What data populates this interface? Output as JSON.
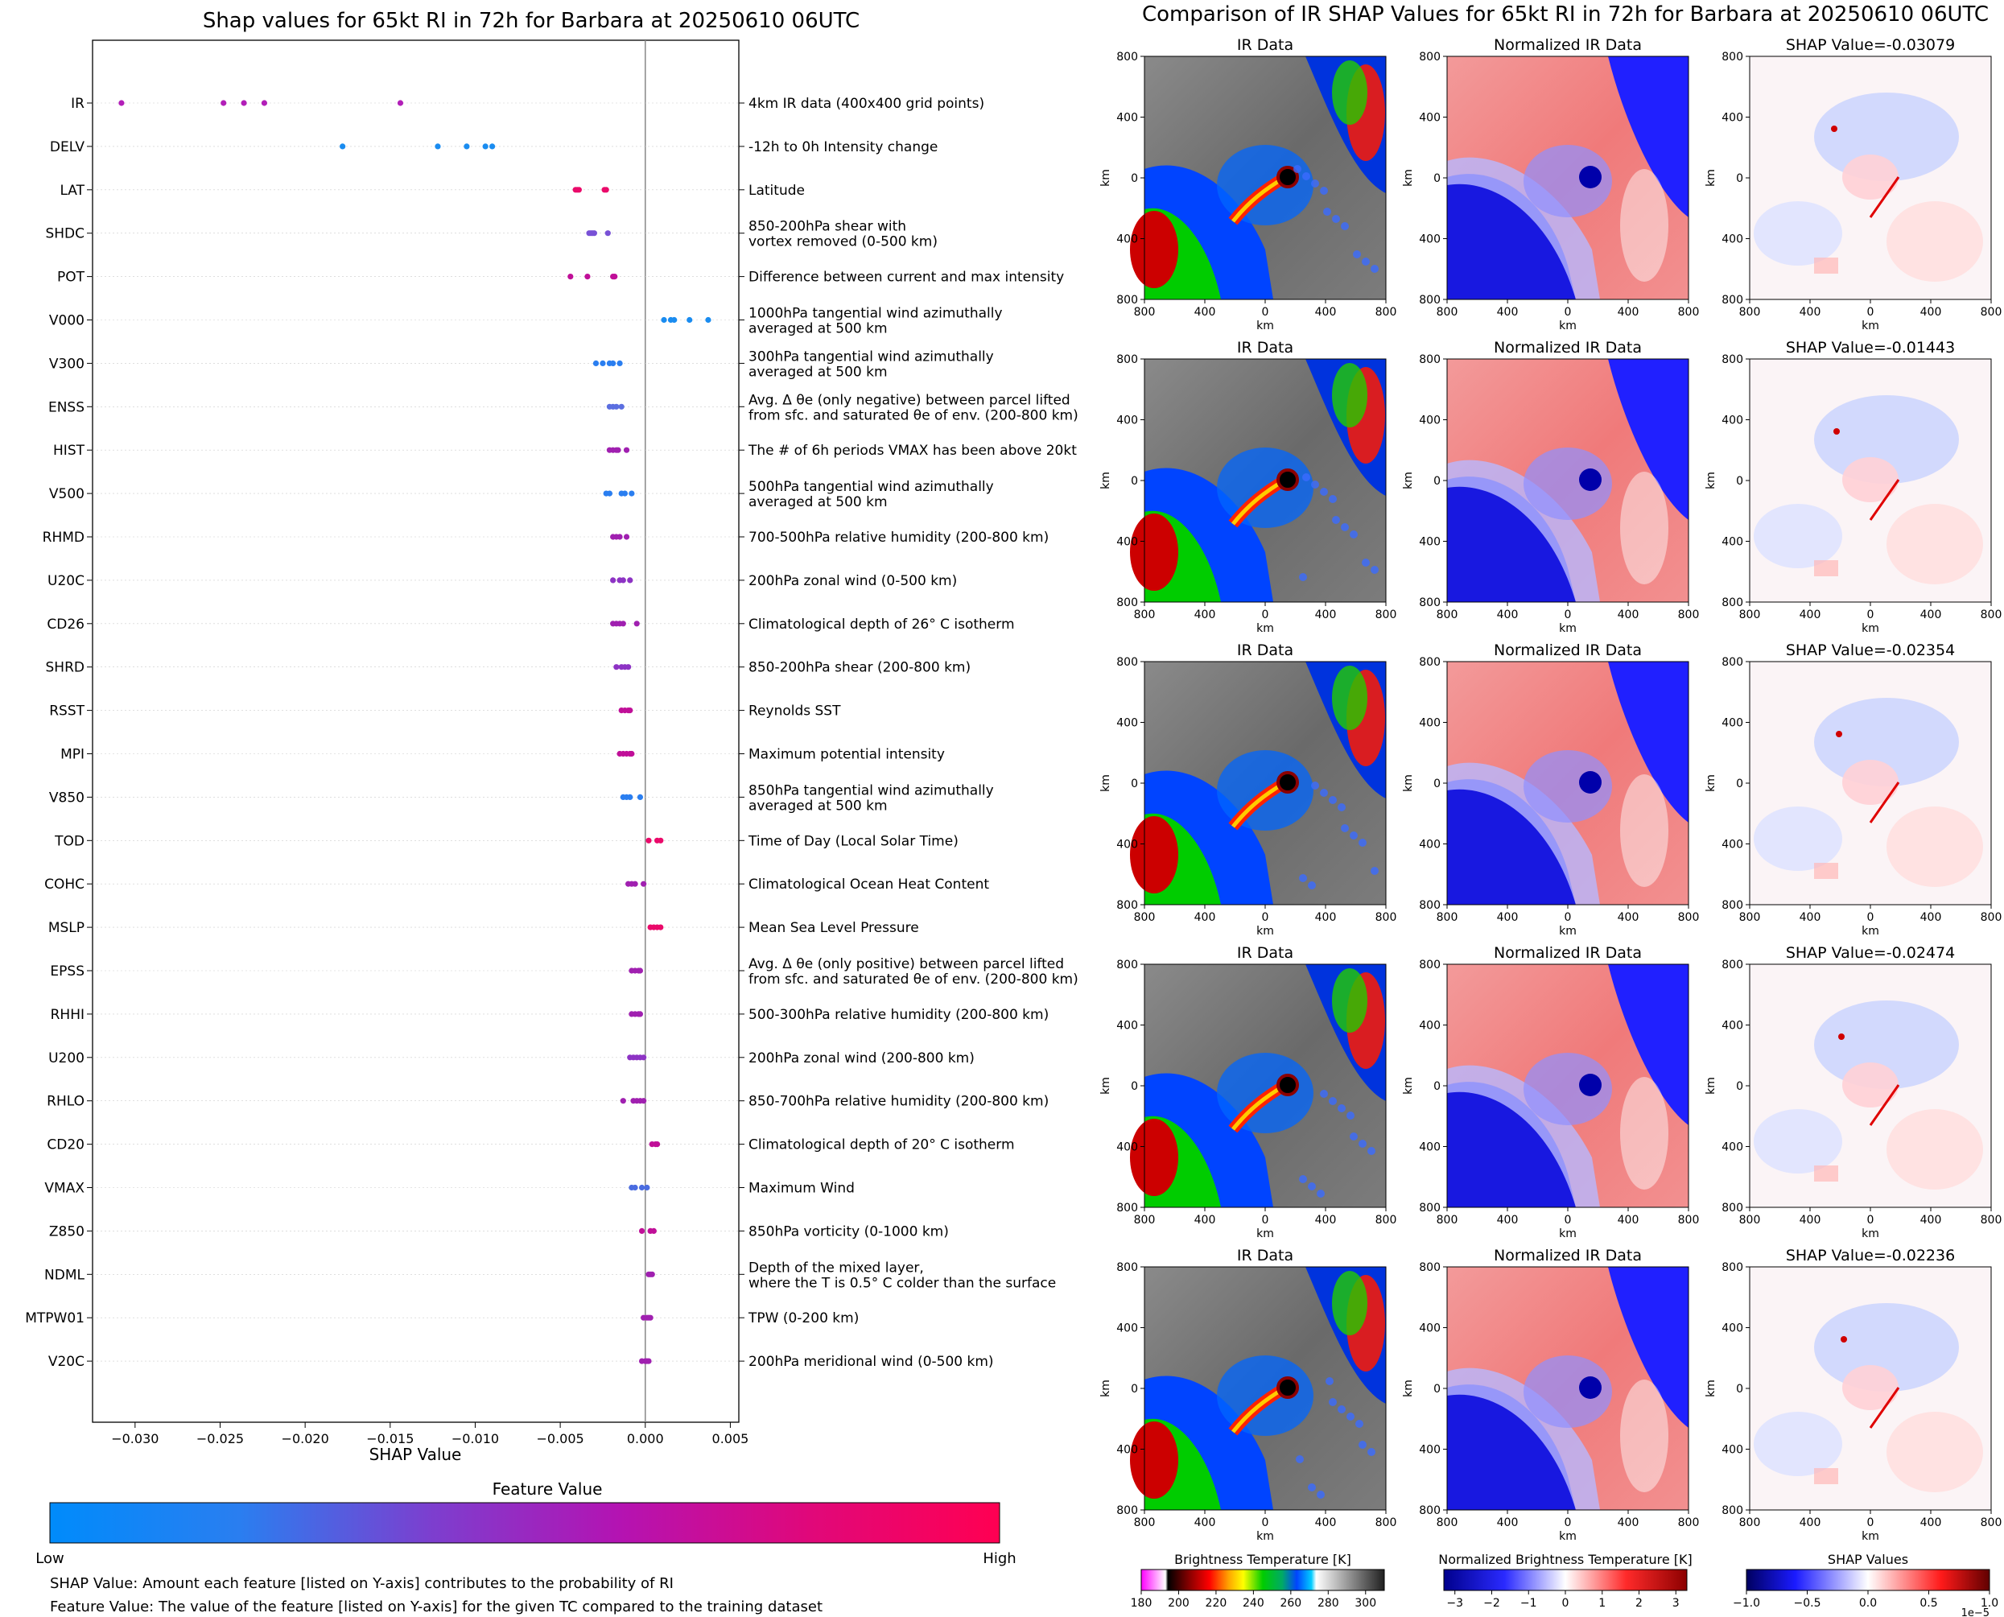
{
  "left_panel": {
    "title": "Shap values for 65kt RI in 72h for Barbara at 20250610 06UTC",
    "xlabel": "SHAP Value",
    "colorbar_title": "Feature Value",
    "colorbar_low": "Low",
    "colorbar_high": "High",
    "footnote_1": "SHAP Value: Amount each feature [listed on Y-axis] contributes to the probability of RI",
    "footnote_2": "Feature Value: The value of the feature [listed on Y-axis] for the given TC compared to the training dataset"
  },
  "right_panel": {
    "title": "Comparison of IR SHAP Values for 65kt RI in 72h for Barbara at 20250610 06UTC",
    "col_titles": [
      "IR Data",
      "Normalized IR Data"
    ],
    "shap_titles": [
      "SHAP Value=-0.03079",
      "SHAP Value=-0.01443",
      "SHAP Value=-0.02354",
      "SHAP Value=-0.02474",
      "SHAP Value=-0.02236"
    ],
    "axis_label": "km",
    "tick_labels": [
      "800",
      "400",
      "0",
      "400",
      "800"
    ],
    "colorbars": [
      {
        "title": "Brightness Temperature [K]",
        "ticks": [
          "180",
          "200",
          "220",
          "240",
          "260",
          "280",
          "300"
        ]
      },
      {
        "title": "Normalized Brightness Temperature [K]",
        "ticks": [
          "−3",
          "−2",
          "−1",
          "0",
          "1",
          "2",
          "3"
        ]
      },
      {
        "title": "SHAP Values",
        "ticks": [
          "−1.0",
          "−0.5",
          "0.0",
          "0.5",
          "1.0"
        ],
        "offset": "1e−5"
      }
    ]
  },
  "chart_data": [
    {
      "type": "scatter",
      "title": "Shap values for 65kt RI in 72h for Barbara at 20250610 06UTC",
      "xlabel": "SHAP Value",
      "xlim": [
        -0.0325,
        0.0055
      ],
      "xticks": [
        -0.03,
        -0.025,
        -0.02,
        -0.015,
        -0.01,
        -0.005,
        0.0,
        0.005
      ],
      "xtick_labels": [
        "−0.030",
        "−0.025",
        "−0.020",
        "−0.015",
        "−0.010",
        "−0.005",
        "0.000",
        "0.005"
      ],
      "grid": false,
      "features": [
        {
          "name": "IR",
          "desc": "4km IR data (400x400 grid points)",
          "values": [
            -0.0308,
            -0.0248,
            -0.0236,
            -0.0224,
            -0.0144
          ],
          "color": "#b21fb8"
        },
        {
          "name": "DELV",
          "desc": "-12h to 0h Intensity change",
          "values": [
            -0.0178,
            -0.0122,
            -0.0105,
            -0.0094,
            -0.009
          ],
          "color": "#1a8cf0"
        },
        {
          "name": "LAT",
          "desc": "Latitude",
          "values": [
            -0.0041,
            -0.004,
            -0.0039,
            -0.0024,
            -0.0023
          ],
          "color": "#ea0a6a"
        },
        {
          "name": "SHDC",
          "desc": "850-200hPa shear with\nvortex removed (0-500 km)",
          "values": [
            -0.0033,
            -0.0032,
            -0.0031,
            -0.003,
            -0.0022
          ],
          "color": "#7851d6"
        },
        {
          "name": "POT",
          "desc": "Difference between current and max intensity",
          "values": [
            -0.0044,
            -0.0034,
            -0.0019,
            -0.0018
          ],
          "color": "#c00f98"
        },
        {
          "name": "V000",
          "desc": "1000hPa tangential wind azimuthally\naveraged at 500 km",
          "values": [
            0.0011,
            0.0015,
            0.0017,
            0.0026,
            0.0037
          ],
          "color": "#1a8cf0"
        },
        {
          "name": "V300",
          "desc": "300hPa tangential wind azimuthally\naveraged at 500 km",
          "values": [
            -0.0029,
            -0.0025,
            -0.0021,
            -0.0019,
            -0.0015
          ],
          "color": "#2a7ef0"
        },
        {
          "name": "ENSS",
          "desc": "Avg. Δ θe (only negative) between parcel lifted\nfrom sfc. and saturated θe of env. (200-800 km)",
          "values": [
            -0.0021,
            -0.0019,
            -0.0017,
            -0.0014
          ],
          "color": "#5b6ee0"
        },
        {
          "name": "HIST",
          "desc": "The # of 6h periods VMAX has been above 20kt",
          "values": [
            -0.0021,
            -0.0019,
            -0.0017,
            -0.0016,
            -0.0011
          ],
          "color": "#a020b0"
        },
        {
          "name": "V500",
          "desc": "500hPa tangential wind azimuthally\naveraged at 500 km",
          "values": [
            -0.0023,
            -0.0021,
            -0.0014,
            -0.0012,
            -0.0008
          ],
          "color": "#2a7ef0"
        },
        {
          "name": "RHMD",
          "desc": "700-500hPa relative humidity (200-800 km)",
          "values": [
            -0.0019,
            -0.0017,
            -0.0015,
            -0.0011
          ],
          "color": "#a020b0"
        },
        {
          "name": "U20C",
          "desc": "200hPa zonal wind (0-500 km)",
          "values": [
            -0.0019,
            -0.0015,
            -0.0013,
            -0.0009
          ],
          "color": "#8d33c4"
        },
        {
          "name": "CD26",
          "desc": "Climatological depth of 26° C isotherm",
          "values": [
            -0.0019,
            -0.0017,
            -0.0015,
            -0.0013,
            -0.0005
          ],
          "color": "#a020b0"
        },
        {
          "name": "SHRD",
          "desc": "850-200hPa shear (200-800 km)",
          "values": [
            -0.0017,
            -0.0014,
            -0.0012,
            -0.001
          ],
          "color": "#8d33c4"
        },
        {
          "name": "RSST",
          "desc": "Reynolds SST",
          "values": [
            -0.0014,
            -0.0012,
            -0.001,
            -0.0009
          ],
          "color": "#c00f98"
        },
        {
          "name": "MPI",
          "desc": "Maximum potential intensity",
          "values": [
            -0.0015,
            -0.0013,
            -0.0011,
            -0.0009,
            -0.0008
          ],
          "color": "#c00f98"
        },
        {
          "name": "V850",
          "desc": "850hPa tangential wind azimuthally\naveraged at 500 km",
          "values": [
            -0.0013,
            -0.0011,
            -0.0009,
            -0.0003
          ],
          "color": "#2a7ef0"
        },
        {
          "name": "TOD",
          "desc": "Time of Day (Local Solar Time)",
          "values": [
            0.0002,
            0.0007,
            0.0009
          ],
          "color": "#ea0a6a"
        },
        {
          "name": "COHC",
          "desc": "Climatological Ocean Heat Content",
          "values": [
            -0.001,
            -0.0008,
            -0.0006,
            -0.0001
          ],
          "color": "#a020b0"
        },
        {
          "name": "MSLP",
          "desc": "Mean Sea Level Pressure",
          "values": [
            0.0003,
            0.0005,
            0.0007,
            0.0009
          ],
          "color": "#ea0a6a"
        },
        {
          "name": "EPSS",
          "desc": "Avg. Δ θe (only positive) between parcel lifted\nfrom sfc. and saturated θe of env. (200-800 km)",
          "values": [
            -0.0008,
            -0.0006,
            -0.0004,
            -0.0003
          ],
          "color": "#a020b0"
        },
        {
          "name": "RHHI",
          "desc": "500-300hPa relative humidity (200-800 km)",
          "values": [
            -0.0008,
            -0.0006,
            -0.0004,
            -0.0003
          ],
          "color": "#a020b0"
        },
        {
          "name": "U200",
          "desc": "200hPa zonal wind (200-800 km)",
          "values": [
            -0.0009,
            -0.0007,
            -0.0005,
            -0.0003,
            -0.0001
          ],
          "color": "#8d33c4"
        },
        {
          "name": "RHLO",
          "desc": "850-700hPa relative humidity (200-800 km)",
          "values": [
            -0.0013,
            -0.0007,
            -0.0005,
            -0.0003,
            -0.0001
          ],
          "color": "#a020b0"
        },
        {
          "name": "CD20",
          "desc": "Climatological depth of 20° C isotherm",
          "values": [
            0.0004,
            0.0006,
            0.0007
          ],
          "color": "#c00f98"
        },
        {
          "name": "VMAX",
          "desc": "Maximum Wind",
          "values": [
            -0.0008,
            -0.0006,
            -0.0002,
            0.0001
          ],
          "color": "#4a6ce0"
        },
        {
          "name": "Z850",
          "desc": "850hPa vorticity (0-1000 km)",
          "values": [
            -0.0002,
            0.0003,
            0.0005
          ],
          "color": "#c00f98"
        },
        {
          "name": "NDML",
          "desc": "Depth of the mixed layer,\nwhere the T is 0.5° C colder than the surface",
          "values": [
            0.0002,
            0.0003,
            0.0004
          ],
          "color": "#a020b0"
        },
        {
          "name": "MTPW01",
          "desc": "TPW (0-200 km)",
          "values": [
            -0.0001,
            0.0001,
            0.0002,
            0.0003
          ],
          "color": "#a020b0"
        },
        {
          "name": "V20C",
          "desc": "200hPa meridional wind (0-500 km)",
          "values": [
            -0.0002,
            0.0,
            0.0001,
            0.0002
          ],
          "color": "#a020b0"
        }
      ]
    },
    {
      "type": "heatmap",
      "title": "Comparison of IR SHAP Values for 65kt RI in 72h for Barbara at 20250610 06UTC",
      "rows": 5,
      "columns": [
        "IR Data",
        "Normalized IR Data",
        "SHAP"
      ],
      "shap_values": [
        -0.03079,
        -0.01443,
        -0.02354,
        -0.02474,
        -0.02236
      ],
      "xlim": [
        -800,
        800
      ],
      "ylim": [
        -800,
        800
      ],
      "xlabel": "km",
      "ylabel": "km",
      "colorbar_ranges": {
        "ir": [
          180,
          310
        ],
        "normalized": [
          -3.3,
          3.3
        ],
        "shap": [
          -1.0,
          1.0
        ]
      }
    }
  ]
}
